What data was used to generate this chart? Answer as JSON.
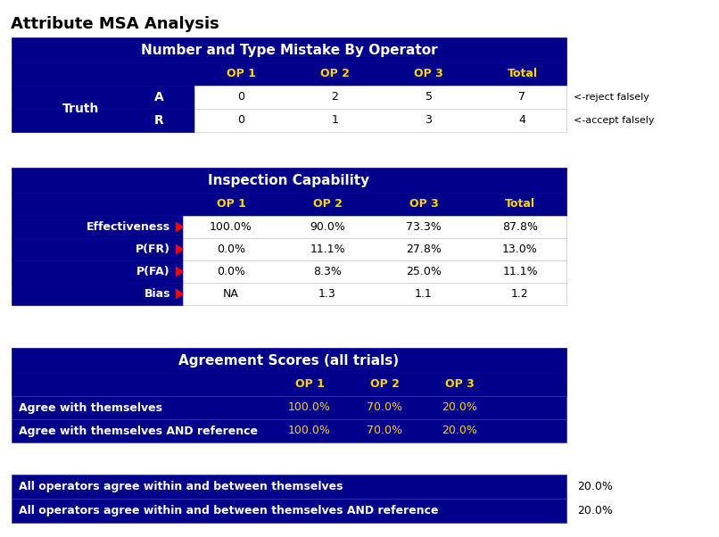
{
  "title": "Attribute MSA Analysis",
  "bg_color": "#FFFFFF",
  "dark_blue": "#00008B",
  "gold_color": "#FFD700",
  "dark_text": "#000000",
  "white_text": "#FFFFFF",
  "table1": {
    "title": "Number and Type Mistake By Operator",
    "col_headers": [
      "OP 1",
      "OP 2",
      "OP 3",
      "Total"
    ],
    "row_labels": [
      "A",
      "R"
    ],
    "row_group_label": "Truth",
    "data": [
      [
        "0",
        "2",
        "5",
        "7"
      ],
      [
        "0",
        "1",
        "3",
        "4"
      ]
    ],
    "annotations": [
      "<-reject falsely",
      "<-accept falsely"
    ]
  },
  "table2": {
    "title": "Inspection Capability",
    "col_headers": [
      "OP 1",
      "OP 2",
      "OP 3",
      "Total"
    ],
    "row_labels": [
      "Effectiveness",
      "P(FR)",
      "P(FA)",
      "Bias"
    ],
    "data": [
      [
        "100.0%",
        "90.0%",
        "73.3%",
        "87.8%"
      ],
      [
        "0.0%",
        "11.1%",
        "27.8%",
        "13.0%"
      ],
      [
        "0.0%",
        "8.3%",
        "25.0%",
        "11.1%"
      ],
      [
        "NA",
        "1.3",
        "1.1",
        "1.2"
      ]
    ]
  },
  "table3": {
    "title": "Agreement Scores (all trials)",
    "col_headers": [
      "OP 1",
      "OP 2",
      "OP 3"
    ],
    "row_labels": [
      "Agree with themselves",
      "Agree with themselves AND reference"
    ],
    "data": [
      [
        "100.0%",
        "70.0%",
        "20.0%"
      ],
      [
        "100.0%",
        "70.0%",
        "20.0%"
      ]
    ]
  },
  "table4": {
    "row_labels": [
      "All operators agree within and between themselves",
      "All operators agree within and between themselves AND reference"
    ],
    "values": [
      "20.0%",
      "20.0%"
    ]
  }
}
